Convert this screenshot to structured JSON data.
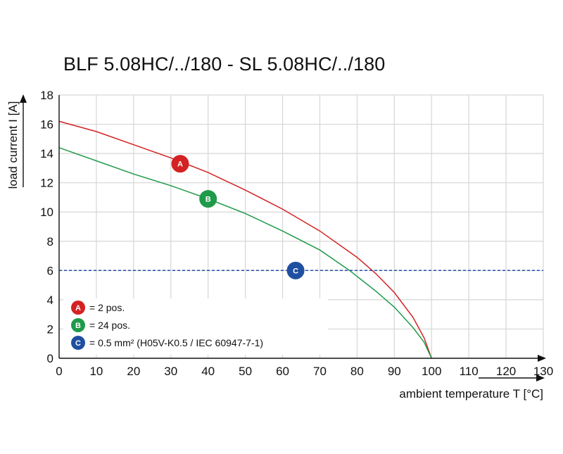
{
  "chart_data": {
    "type": "line",
    "title": "BLF 5.08HC/../180 - SL 5.08HC/../180",
    "xlabel": "ambient temperature T [°C]",
    "ylabel": "load current I [A]",
    "xlim": [
      0,
      130
    ],
    "ylim": [
      0,
      18
    ],
    "x_ticks": [
      "0",
      "10",
      "20",
      "30",
      "40",
      "50",
      "60",
      "70",
      "80",
      "90",
      "100",
      "110",
      "120",
      "130"
    ],
    "y_ticks": [
      "0",
      "2",
      "4",
      "6",
      "8",
      "10",
      "12",
      "14",
      "16",
      "18"
    ],
    "grid": true,
    "series": [
      {
        "name": "A",
        "color": "#d42222",
        "x": [
          0,
          10,
          20,
          30,
          40,
          50,
          60,
          70,
          80,
          85,
          90,
          95,
          98,
          100
        ],
        "y": [
          16.2,
          15.5,
          14.6,
          13.7,
          12.7,
          11.5,
          10.2,
          8.7,
          6.9,
          5.8,
          4.5,
          2.8,
          1.4,
          0
        ]
      },
      {
        "name": "B",
        "color": "#1f9a4a",
        "x": [
          0,
          10,
          20,
          30,
          40,
          50,
          60,
          70,
          78,
          85,
          90,
          95,
          98,
          100
        ],
        "y": [
          14.4,
          13.5,
          12.6,
          11.8,
          10.9,
          9.9,
          8.7,
          7.4,
          6.0,
          4.6,
          3.5,
          2.1,
          1.1,
          0
        ]
      },
      {
        "name": "C",
        "color": "#1f4fa0",
        "style": "dashed",
        "x": [
          0,
          130
        ],
        "y": [
          6,
          6
        ]
      }
    ],
    "markers": [
      {
        "label": "A",
        "x": 32.5,
        "y": 13.3,
        "color": "#d42222"
      },
      {
        "label": "B",
        "x": 40,
        "y": 10.9,
        "color": "#1f9a4a"
      },
      {
        "label": "C",
        "x": 63.5,
        "y": 6.0,
        "color": "#1f4fa0"
      }
    ],
    "legend": {
      "placement": "bottom-left",
      "entries": [
        {
          "badge": "A",
          "text": "= 2 pos.",
          "color": "#d42222"
        },
        {
          "badge": "B",
          "text": "= 24 pos.",
          "color": "#1f9a4a"
        },
        {
          "badge": "C",
          "text": "= 0.5 mm² (H05V-K0.5 / IEC 60947-7-1)",
          "color": "#1f4fa0"
        }
      ]
    }
  }
}
